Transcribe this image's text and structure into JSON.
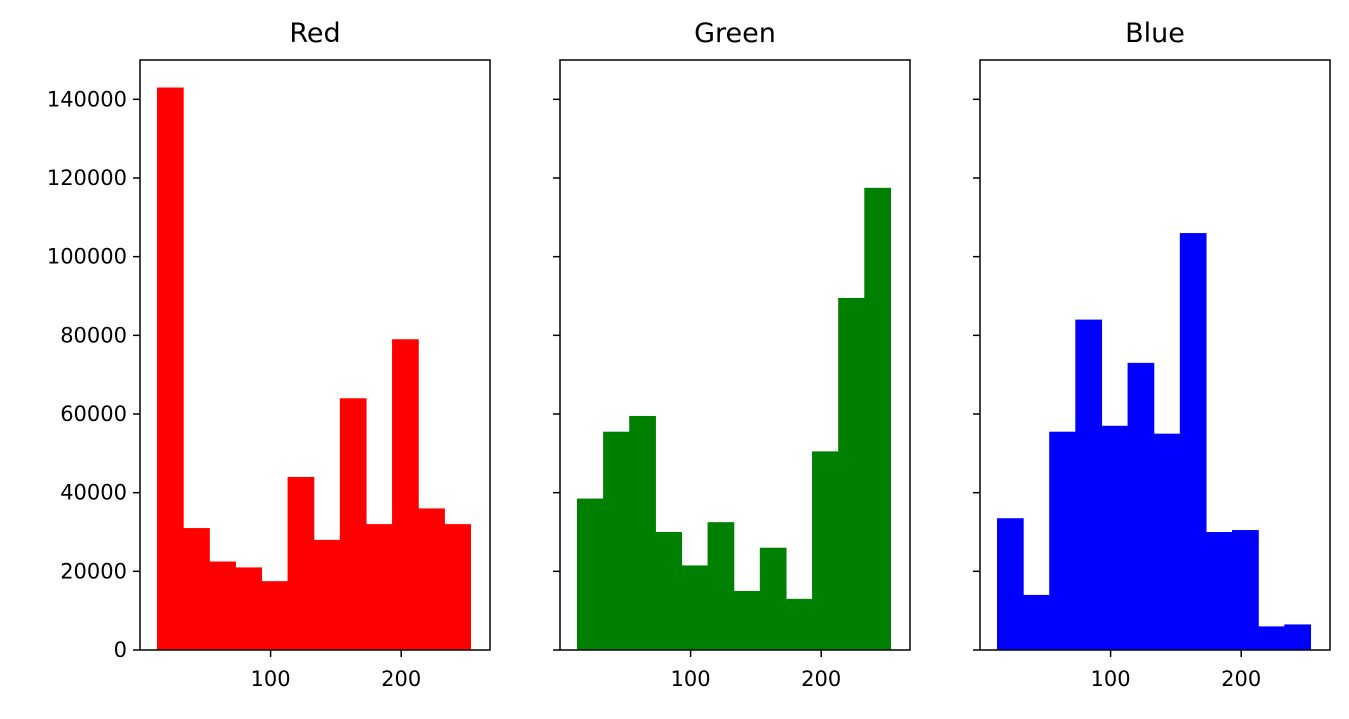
{
  "chart_data": [
    {
      "type": "bar",
      "title": "Red",
      "color": "#ff0000",
      "xlim": [
        0,
        268
      ],
      "ylim": [
        0,
        150000
      ],
      "xticks": [
        100,
        200
      ],
      "yticks": [
        0,
        20000,
        40000,
        60000,
        80000,
        100000,
        120000,
        140000
      ],
      "show_ytick_labels": true,
      "bin_edges": [
        13,
        33,
        53,
        73,
        93,
        113,
        133,
        153,
        173,
        193,
        213,
        233,
        253
      ],
      "values": [
        143000,
        31000,
        22500,
        21000,
        17500,
        44000,
        28000,
        64000,
        32000,
        79000,
        36000,
        32000
      ]
    },
    {
      "type": "bar",
      "title": "Green",
      "color": "#008000",
      "xlim": [
        0,
        268
      ],
      "ylim": [
        0,
        150000
      ],
      "xticks": [
        100,
        200
      ],
      "yticks": [
        0,
        20000,
        40000,
        60000,
        80000,
        100000,
        120000,
        140000
      ],
      "show_ytick_labels": false,
      "bin_edges": [
        13,
        33,
        53,
        73,
        93,
        113,
        133,
        153,
        173,
        193,
        213,
        233,
        253
      ],
      "values": [
        38500,
        55500,
        59500,
        30000,
        21500,
        32500,
        15000,
        26000,
        13000,
        50500,
        89500,
        117500
      ]
    },
    {
      "type": "bar",
      "title": "Blue",
      "color": "#0000ff",
      "xlim": [
        0,
        268
      ],
      "ylim": [
        0,
        150000
      ],
      "xticks": [
        100,
        200
      ],
      "yticks": [
        0,
        20000,
        40000,
        60000,
        80000,
        100000,
        120000,
        140000
      ],
      "show_ytick_labels": false,
      "bin_edges": [
        13,
        33,
        53,
        73,
        93,
        113,
        133,
        153,
        173,
        193,
        213,
        233,
        253
      ],
      "values": [
        33500,
        14000,
        55500,
        84000,
        57000,
        73000,
        55000,
        106000,
        30000,
        30500,
        6000,
        6500
      ]
    }
  ]
}
